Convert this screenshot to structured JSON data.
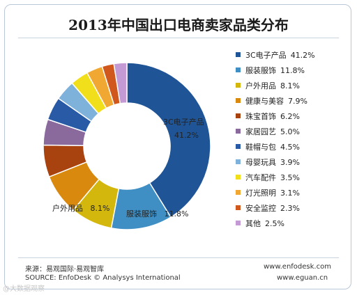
{
  "chart_data": {
    "type": "pie",
    "title": "2013年中国出口电商卖家品类分布",
    "categories": [
      "3C电子产品",
      "服装服饰",
      "户外用品",
      "健康与美容",
      "珠宝首饰",
      "家居园艺",
      "鞋帽与包",
      "母婴玩具",
      "汽车配件",
      "灯光照明",
      "安全监控",
      "其他"
    ],
    "values": [
      41.2,
      11.8,
      8.1,
      7.9,
      6.2,
      5.0,
      4.5,
      3.9,
      3.5,
      3.1,
      2.3,
      2.5
    ],
    "value_labels": [
      "41.2%",
      "11.8%",
      "8.1%",
      "7.9%",
      "6.2%",
      "5.0%",
      "4.5%",
      "3.9%",
      "3.5%",
      "3.1%",
      "2.3%",
      "2.5%"
    ],
    "colors": [
      "#1f5597",
      "#3f8fc4",
      "#d4b70d",
      "#d9890e",
      "#a8420f",
      "#8a6a9d",
      "#285aa6",
      "#7fb2db",
      "#f2df1c",
      "#f0a833",
      "#d0581c",
      "#c39ad3"
    ],
    "legend_position": "right",
    "slice_labels": [
      {
        "category": "3C电子产品",
        "value": "41.2%"
      },
      {
        "category": "服装服饰",
        "value": "11.8%"
      },
      {
        "category": "户外用品",
        "value": "8.1%"
      }
    ]
  },
  "footer": {
    "source_cn": "来源：易观国际·易观智库",
    "source_en": "SOURCE: EnfoDesk © Analysys International",
    "url1": "www.enfodesk.com",
    "url2": "www.eguan.cn"
  },
  "watermark": {
    "text": "@大数据观察"
  }
}
